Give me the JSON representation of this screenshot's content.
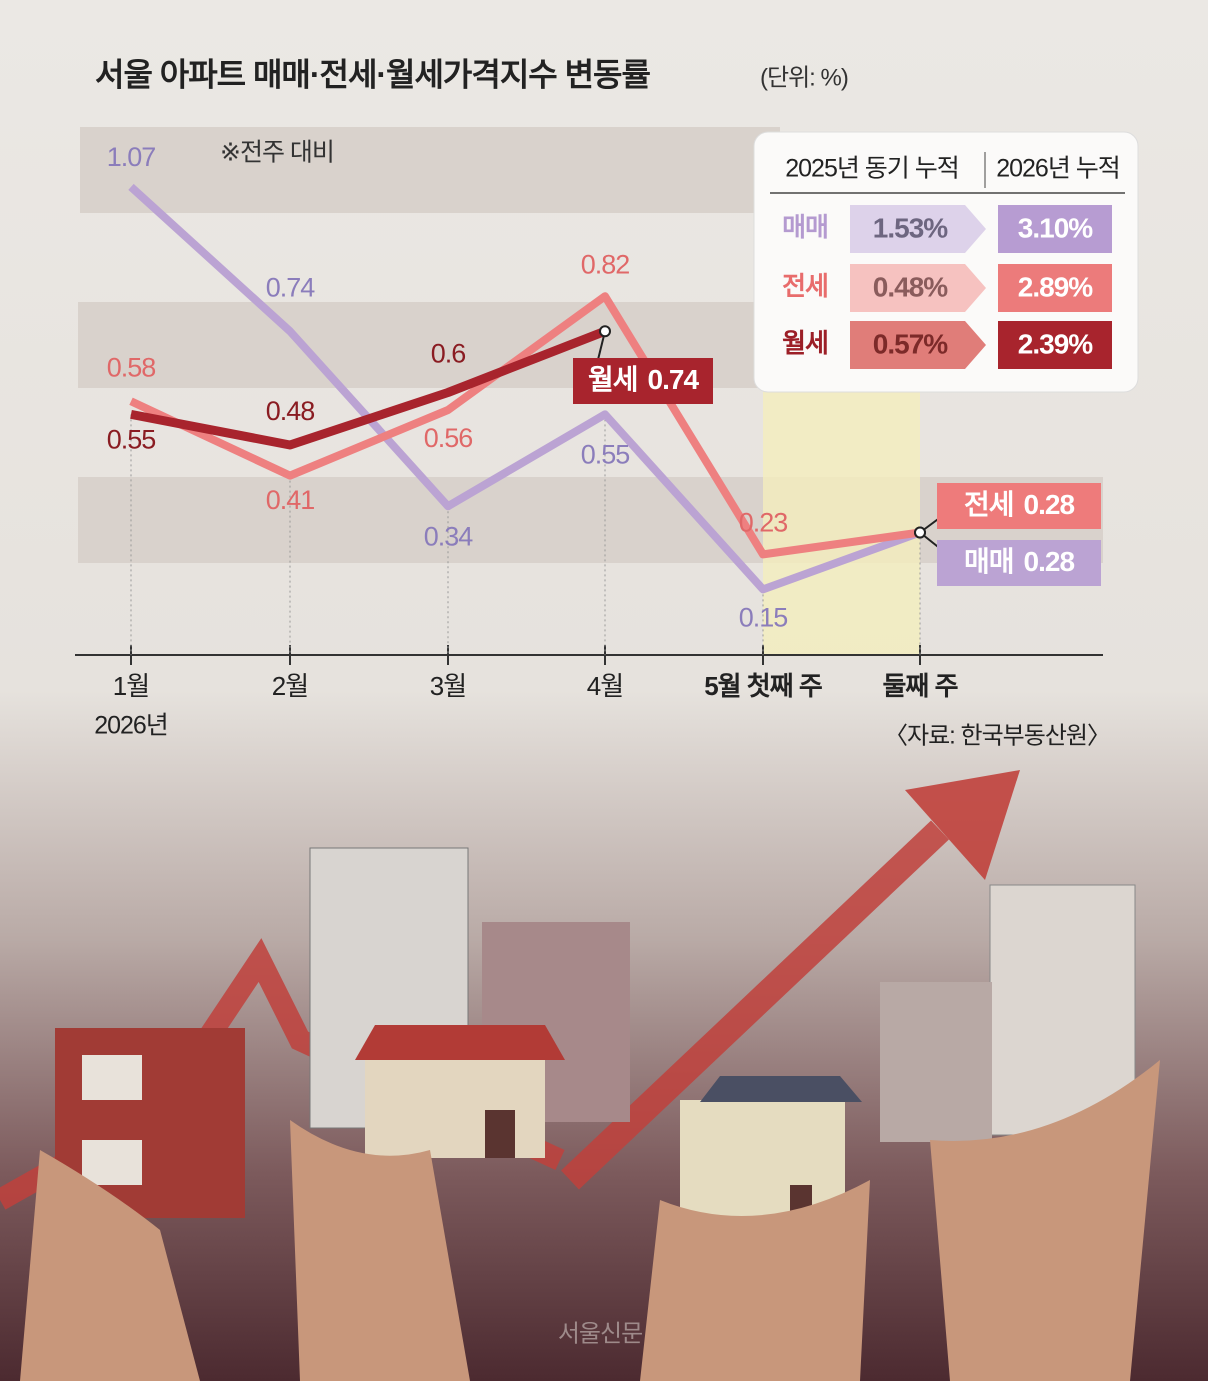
{
  "chart_data": {
    "type": "line",
    "title": "서울 아파트 매매·전세·월세가격지수 변동률",
    "unit": "(단위: %)",
    "note": "※전주 대비",
    "year_label": "2026년",
    "source": "〈자료: 한국부동산원〉",
    "watermark": "서울신문",
    "categories": [
      "1월",
      "2월",
      "3월",
      "4월",
      "5월 첫째 주",
      "둘째 주"
    ],
    "series": [
      {
        "name": "매매",
        "color": "#bba3d3",
        "values": [
          1.07,
          0.74,
          0.34,
          0.55,
          0.15,
          0.28
        ]
      },
      {
        "name": "전세",
        "color": "#ee8080",
        "values": [
          0.58,
          0.41,
          0.56,
          0.82,
          0.23,
          0.28
        ]
      },
      {
        "name": "월세",
        "color": "#a8242d",
        "values": [
          0.55,
          0.48,
          0.6,
          0.74,
          null,
          null
        ]
      }
    ],
    "ylim": [
      0,
      1.2
    ],
    "table": {
      "headers": [
        "2025년 동기 누적",
        "2026년 누적"
      ],
      "rows": [
        [
          "매매",
          "1.53%",
          "3.10%"
        ],
        [
          "전세",
          "0.48%",
          "2.89%"
        ],
        [
          "월세",
          "0.57%",
          "2.39%"
        ]
      ]
    }
  }
}
